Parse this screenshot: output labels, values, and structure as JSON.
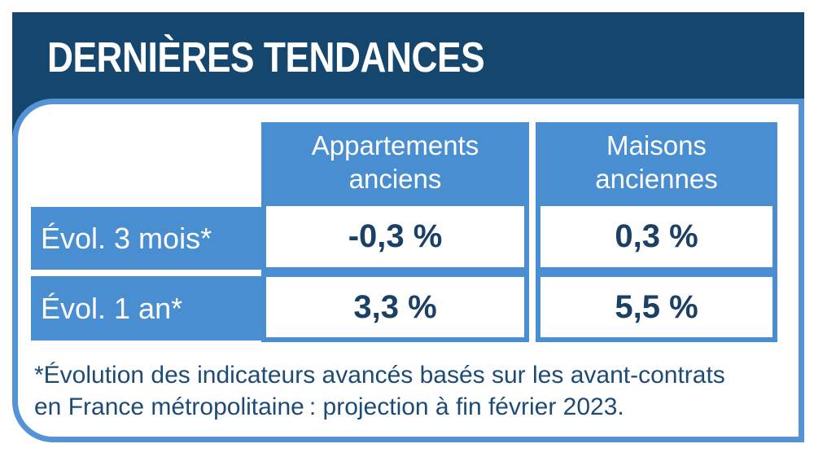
{
  "colors": {
    "navy": "#15466e",
    "blue": "#4a8ed2",
    "panel_border": "#5493d5",
    "value_text": "#1b4065",
    "footnote_text": "#1d4b75",
    "background": "#ffffff"
  },
  "header": {
    "title": "DERNIÈRES TENDANCES"
  },
  "table": {
    "columns": [
      {
        "line1": "Appartements",
        "line2": "anciens"
      },
      {
        "line1": "Maisons",
        "line2": "anciennes"
      }
    ],
    "rows": [
      {
        "label": "Évol. 3 mois*",
        "values": [
          "-0,3 %",
          "0,3 %"
        ]
      },
      {
        "label": "Évol. 1 an*",
        "values": [
          "3,3 %",
          "5,5 %"
        ]
      }
    ]
  },
  "footnote": {
    "line1": "*Évolution des indicateurs avancés basés sur les avant-contrats",
    "line2": "en France métropolitaine : projection à fin février 2023."
  },
  "chart_data": {
    "type": "table",
    "title": "DERNIÈRES TENDANCES",
    "columns": [
      "Appartements anciens",
      "Maisons anciennes"
    ],
    "rows": [
      {
        "label": "Évol. 3 mois*",
        "values_pct": [
          -0.3,
          0.3
        ],
        "values_display": [
          "-0,3 %",
          "0,3 %"
        ]
      },
      {
        "label": "Évol. 1 an*",
        "values_pct": [
          3.3,
          5.5
        ],
        "values_display": [
          "3,3 %",
          "5,5 %"
        ]
      }
    ],
    "footnote": "*Évolution des indicateurs avancés basés sur les avant-contrats en France métropolitaine : projection à fin février 2023."
  }
}
